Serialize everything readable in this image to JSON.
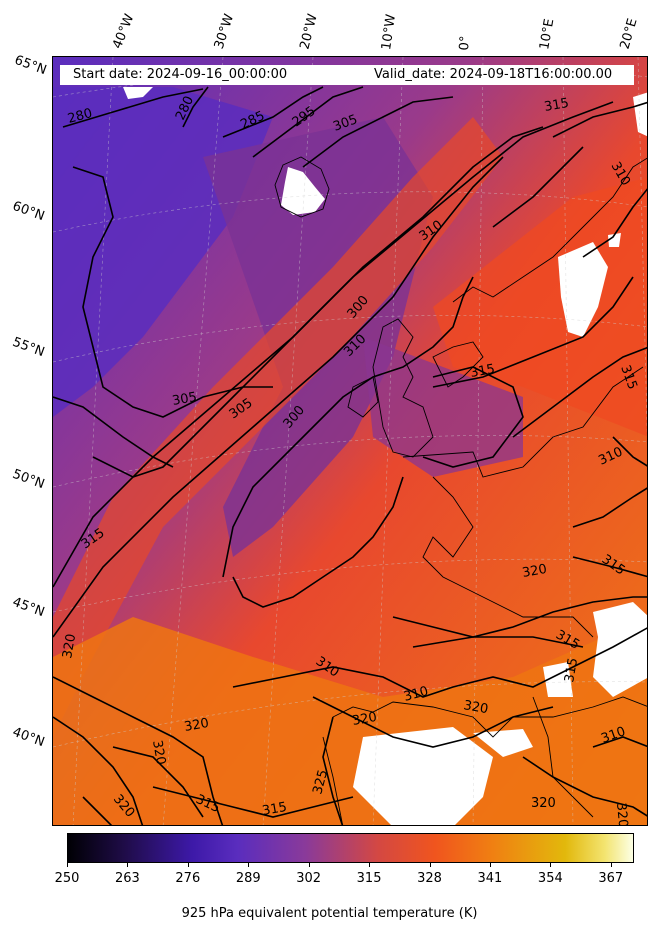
{
  "header": {
    "start_date": "Start date: 2024-09-16_00:00:00",
    "valid_date": "Valid_date: 2024-09-18T16:00:00.00"
  },
  "longitude_labels": [
    "40°W",
    "30°W",
    "20°W",
    "10°W",
    "0°",
    "10°E",
    "20°E"
  ],
  "latitude_labels": [
    "65°N",
    "60°N",
    "55°N",
    "50°N",
    "45°N",
    "40°N"
  ],
  "contour_labels": [
    "280",
    "280",
    "285",
    "295",
    "305",
    "315",
    "310",
    "310",
    "300",
    "305",
    "305",
    "300",
    "310",
    "315",
    "315",
    "310",
    "315",
    "320",
    "315",
    "310",
    "310",
    "320",
    "320",
    "315",
    "320",
    "315",
    "320",
    "320",
    "320",
    "315",
    "315",
    "325",
    "320",
    "320"
  ],
  "colorbar": {
    "ticks": [
      "250",
      "263",
      "276",
      "289",
      "302",
      "315",
      "328",
      "341",
      "354",
      "367"
    ],
    "label": "925 hPa equivalent potential temperature (K)",
    "colormap": "CMRmap",
    "range": [
      250,
      372
    ]
  },
  "colors": {
    "cold": "#5a2dbe",
    "mid": "#d44842",
    "warm": "#f0551e",
    "hot": "#f07f12",
    "missing": "#ffffff",
    "contour": "#000000"
  }
}
